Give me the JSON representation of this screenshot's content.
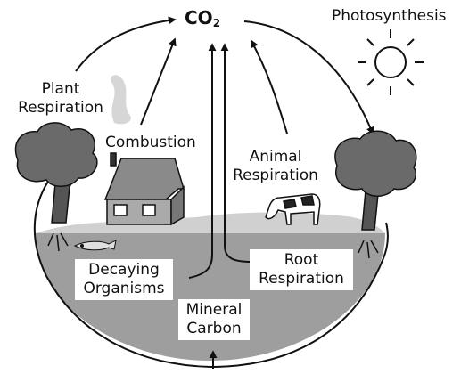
{
  "co2": {
    "base": "CO",
    "subscript": "2"
  },
  "labels": {
    "photosynthesis": "Photosynthesis",
    "plant_respiration": [
      "Plant",
      "Respiration"
    ],
    "combustion": "Combustion",
    "animal_respiration": [
      "Animal",
      "Respiration"
    ],
    "decaying_organisms": [
      "Decaying",
      "Organisms"
    ],
    "root_respiration": [
      "Root",
      "Respiration"
    ],
    "mineral_carbon": [
      "Mineral",
      "Carbon"
    ]
  }
}
